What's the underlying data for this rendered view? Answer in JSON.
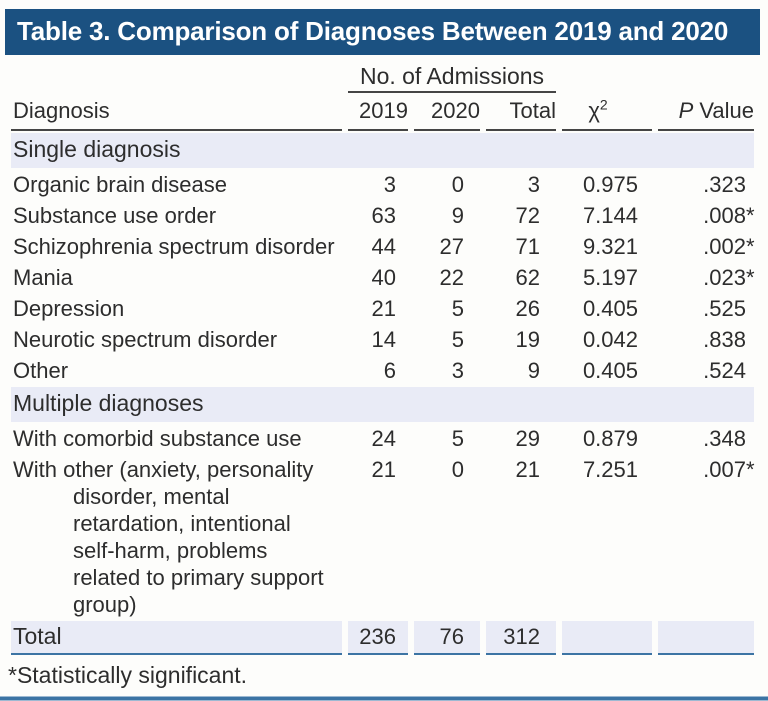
{
  "title": "Table 3. Comparison of Diagnoses Between 2019 and 2020",
  "colors": {
    "title_bar_bg": "#1b5181",
    "title_text": "#ffffff",
    "section_row_bg": "#e9ebf6",
    "rule_blue": "#3c74a4",
    "rule_dark": "#454545",
    "body_text": "#2d2d2d"
  },
  "table": {
    "group_header": "No. of Admissions",
    "columns": {
      "diagnosis": "Diagnosis",
      "y2019": "2019",
      "y2020": "2020",
      "total": "Total",
      "chi_base": "χ",
      "chi_sup": "2",
      "p_italic": "P",
      "p_rest": " Value"
    },
    "sections": [
      {
        "header": "Single diagnosis",
        "rows": [
          {
            "diagnosis": "Organic brain disease",
            "y2019": "3",
            "y2020": "0",
            "total": "3",
            "chi": "0.975",
            "p": ".323",
            "sig": ""
          },
          {
            "diagnosis": "Substance use order",
            "y2019": "63",
            "y2020": "9",
            "total": "72",
            "chi": "7.144",
            "p": ".008",
            "sig": "*"
          },
          {
            "diagnosis": "Schizophrenia spectrum disorder",
            "y2019": "44",
            "y2020": "27",
            "total": "71",
            "chi": "9.321",
            "p": ".002",
            "sig": "*"
          },
          {
            "diagnosis": "Mania",
            "y2019": "40",
            "y2020": "22",
            "total": "62",
            "chi": "5.197",
            "p": ".023",
            "sig": "*"
          },
          {
            "diagnosis": "Depression",
            "y2019": "21",
            "y2020": "5",
            "total": "26",
            "chi": "0.405",
            "p": ".525",
            "sig": ""
          },
          {
            "diagnosis": "Neurotic spectrum disorder",
            "y2019": "14",
            "y2020": "5",
            "total": "19",
            "chi": "0.042",
            "p": ".838",
            "sig": ""
          },
          {
            "diagnosis": "Other",
            "y2019": "6",
            "y2020": "3",
            "total": "9",
            "chi": "0.405",
            "p": ".524",
            "sig": ""
          }
        ]
      },
      {
        "header": "Multiple diagnoses",
        "rows": [
          {
            "diagnosis": "With comorbid substance use",
            "y2019": "24",
            "y2020": "5",
            "total": "29",
            "chi": "0.879",
            "p": ".348",
            "sig": ""
          },
          {
            "diagnosis": "With other (anxiety, personality disorder, mental retardation, intentional self-harm, problems related to primary support group)",
            "y2019": "21",
            "y2020": "0",
            "total": "21",
            "chi": "7.251",
            "p": ".007",
            "sig": "*"
          }
        ]
      }
    ],
    "total_row": {
      "label": "Total",
      "y2019": "236",
      "y2020": "76",
      "total": "312"
    },
    "footnote": "*Statistically significant."
  }
}
